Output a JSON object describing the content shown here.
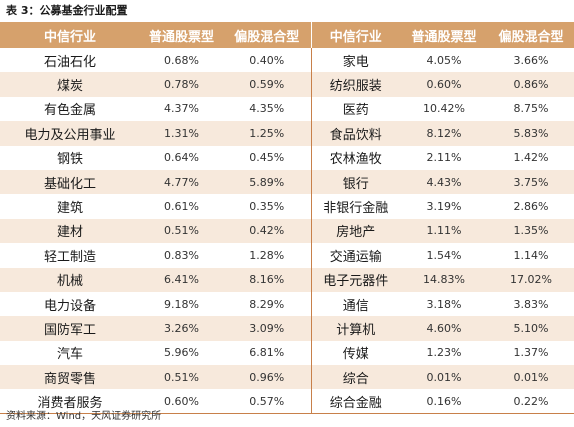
{
  "caption": "表 3：公募基金行业配置",
  "columns": [
    "中信行业",
    "普通股票型",
    "偏股混合型",
    "中信行业",
    "普通股票型",
    "偏股混合型"
  ],
  "rows": [
    {
      "left": {
        "industry": "石油石化",
        "stock": "0.68%",
        "mixed": "0.40%"
      },
      "right": {
        "industry": "家电",
        "stock": "4.05%",
        "mixed": "3.66%"
      }
    },
    {
      "left": {
        "industry": "煤炭",
        "stock": "0.78%",
        "mixed": "0.59%"
      },
      "right": {
        "industry": "纺织服装",
        "stock": "0.60%",
        "mixed": "0.86%"
      }
    },
    {
      "left": {
        "industry": "有色金属",
        "stock": "4.37%",
        "mixed": "4.35%"
      },
      "right": {
        "industry": "医药",
        "stock": "10.42%",
        "mixed": "8.75%"
      }
    },
    {
      "left": {
        "industry": "电力及公用事业",
        "stock": "1.31%",
        "mixed": "1.25%"
      },
      "right": {
        "industry": "食品饮料",
        "stock": "8.12%",
        "mixed": "5.83%"
      }
    },
    {
      "left": {
        "industry": "钢铁",
        "stock": "0.64%",
        "mixed": "0.45%"
      },
      "right": {
        "industry": "农林渔牧",
        "stock": "2.11%",
        "mixed": "1.42%"
      }
    },
    {
      "left": {
        "industry": "基础化工",
        "stock": "4.77%",
        "mixed": "5.89%"
      },
      "right": {
        "industry": "银行",
        "stock": "4.43%",
        "mixed": "3.75%"
      }
    },
    {
      "left": {
        "industry": "建筑",
        "stock": "0.61%",
        "mixed": "0.35%"
      },
      "right": {
        "industry": "非银行金融",
        "stock": "3.19%",
        "mixed": "2.86%"
      }
    },
    {
      "left": {
        "industry": "建材",
        "stock": "0.51%",
        "mixed": "0.42%"
      },
      "right": {
        "industry": "房地产",
        "stock": "1.11%",
        "mixed": "1.35%"
      }
    },
    {
      "left": {
        "industry": "轻工制造",
        "stock": "0.83%",
        "mixed": "1.28%"
      },
      "right": {
        "industry": "交通运输",
        "stock": "1.54%",
        "mixed": "1.14%"
      }
    },
    {
      "left": {
        "industry": "机械",
        "stock": "6.41%",
        "mixed": "8.16%"
      },
      "right": {
        "industry": "电子元器件",
        "stock": "14.83%",
        "mixed": "17.02%"
      }
    },
    {
      "left": {
        "industry": "电力设备",
        "stock": "9.18%",
        "mixed": "8.29%"
      },
      "right": {
        "industry": "通信",
        "stock": "3.18%",
        "mixed": "3.83%"
      }
    },
    {
      "left": {
        "industry": "国防军工",
        "stock": "3.26%",
        "mixed": "3.09%"
      },
      "right": {
        "industry": "计算机",
        "stock": "4.60%",
        "mixed": "5.10%"
      }
    },
    {
      "left": {
        "industry": "汽车",
        "stock": "5.96%",
        "mixed": "6.81%"
      },
      "right": {
        "industry": "传媒",
        "stock": "1.23%",
        "mixed": "1.37%"
      }
    },
    {
      "left": {
        "industry": "商贸零售",
        "stock": "0.51%",
        "mixed": "0.96%"
      },
      "right": {
        "industry": "综合",
        "stock": "0.01%",
        "mixed": "0.01%"
      }
    },
    {
      "left": {
        "industry": "消费者服务",
        "stock": "0.60%",
        "mixed": "0.57%"
      },
      "right": {
        "industry": "综合金融",
        "stock": "0.16%",
        "mixed": "0.22%"
      }
    }
  ],
  "source": "资料来源：Wind，天风证券研究所",
  "colors": {
    "header_bg": "#d6a16c",
    "stripe_bg": "#f7e9dc",
    "rule": "#c8804a"
  }
}
